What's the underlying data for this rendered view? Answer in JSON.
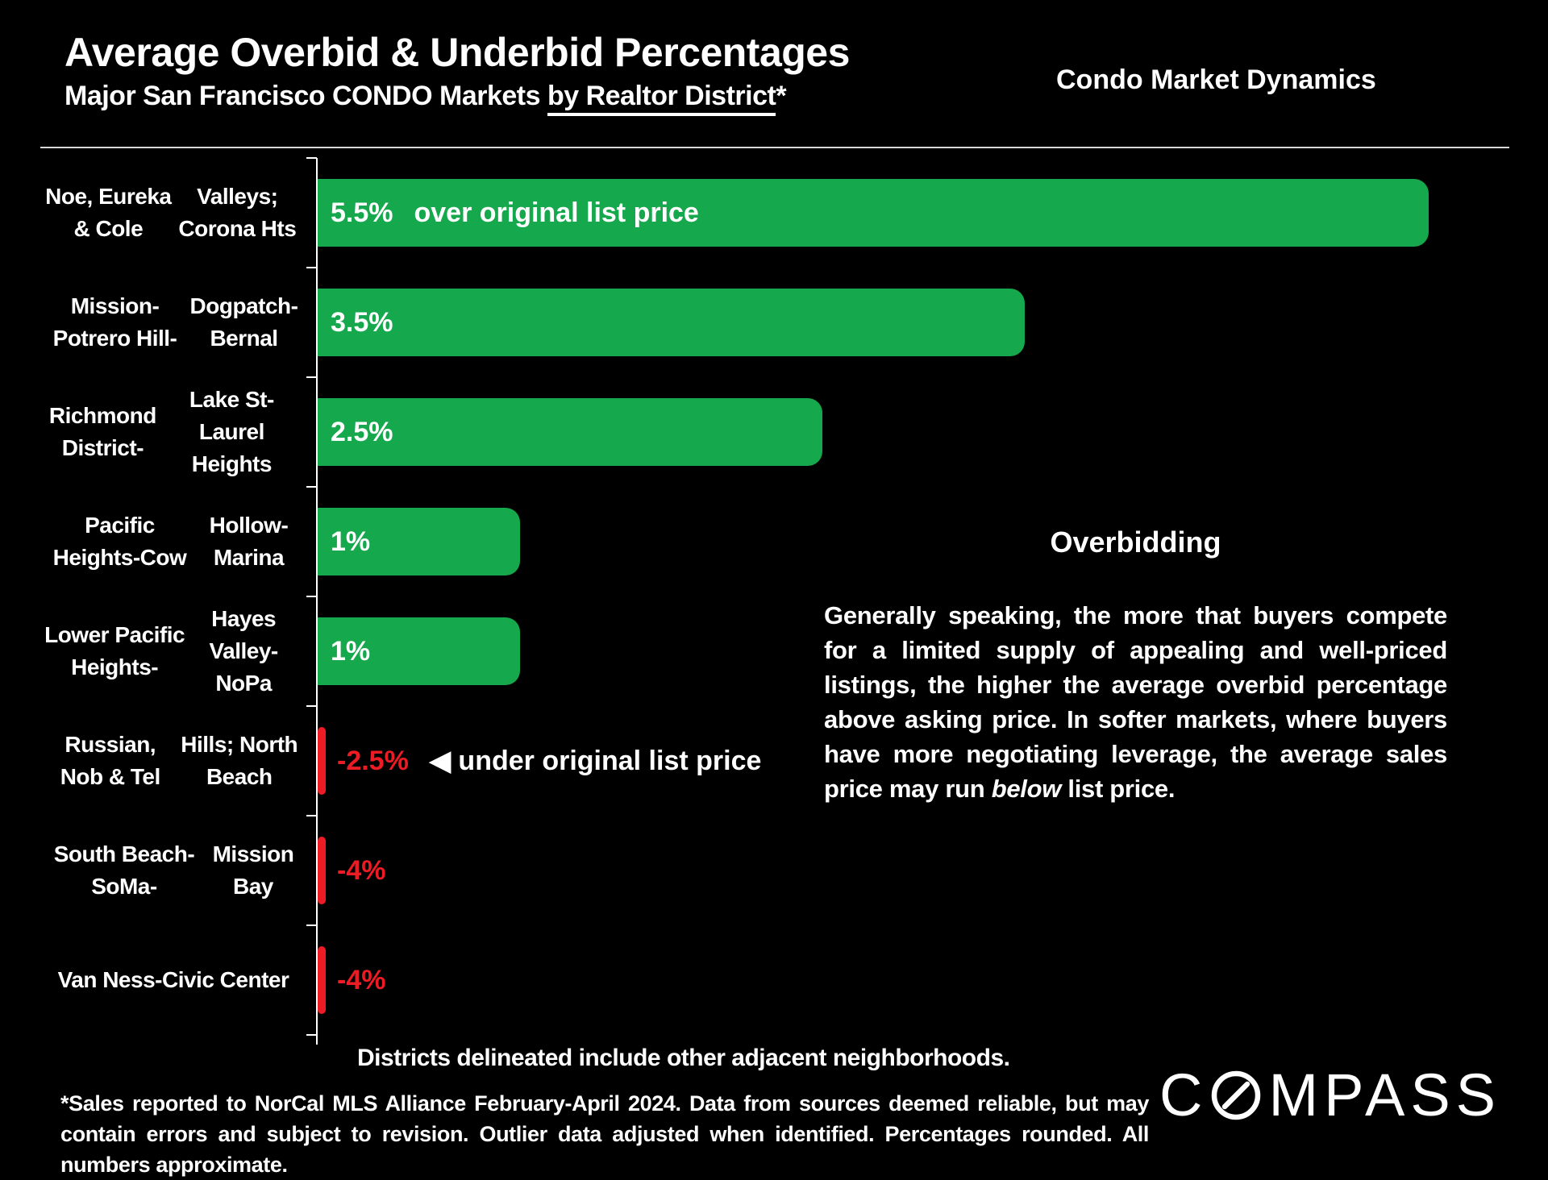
{
  "header": {
    "title": "Average Overbid & Underbid Percentages",
    "subtitle_prefix": "Major San Francisco CONDO Markets ",
    "subtitle_underlined": "by Realtor District",
    "subtitle_suffix": "*",
    "right_title": "Condo Market Dynamics"
  },
  "chart_data": {
    "type": "bar",
    "orientation": "horizontal",
    "value_unit": "percent vs original list price",
    "axis_range": [
      0,
      5.5
    ],
    "positive_color": "#16a84c",
    "negative_color": "#ed1c24",
    "categories": [
      "Noe, Eureka & Cole Valleys; Corona Hts",
      "Mission-Potrero Hill-Dogpatch-Bernal",
      "Richmond District-Lake St-Laurel Heights",
      "Pacific Heights-Cow Hollow-Marina",
      "Lower Pacific Heights-Hayes Valley-NoPa",
      "Russian, Nob & Tel Hills; North Beach",
      "South Beach-SoMa-Mission Bay",
      "Van Ness-Civic Center"
    ],
    "values": [
      5.5,
      3.5,
      2.5,
      1,
      1,
      -2.5,
      -4,
      -4
    ],
    "rows": [
      {
        "label_lines": [
          "Noe, Eureka & Cole",
          "Valleys; Corona Hts"
        ],
        "value": 5.5,
        "value_label": "5.5%",
        "annotation": "over original list price"
      },
      {
        "label_lines": [
          "Mission-Potrero Hill-",
          "Dogpatch-Bernal"
        ],
        "value": 3.5,
        "value_label": "3.5%",
        "annotation": ""
      },
      {
        "label_lines": [
          "Richmond District-",
          "Lake St-Laurel Heights"
        ],
        "value": 2.5,
        "value_label": "2.5%",
        "annotation": ""
      },
      {
        "label_lines": [
          "Pacific Heights-Cow",
          "Hollow-Marina"
        ],
        "value": 1,
        "value_label": "1%",
        "annotation": ""
      },
      {
        "label_lines": [
          "Lower Pacific Heights-",
          "Hayes Valley-NoPa"
        ],
        "value": 1,
        "value_label": "1%",
        "annotation": ""
      },
      {
        "label_lines": [
          "Russian, Nob & Tel",
          "Hills; North Beach"
        ],
        "value": -2.5,
        "value_label": "-2.5%",
        "annotation": "◀ under original list price"
      },
      {
        "label_lines": [
          "South Beach-SoMa-",
          "Mission Bay"
        ],
        "value": -4,
        "value_label": "-4%",
        "annotation": ""
      },
      {
        "label_lines": [
          "Van Ness-Civic Center"
        ],
        "value": -4,
        "value_label": "-4%",
        "annotation": ""
      }
    ]
  },
  "side_panel": {
    "heading": "Overbidding",
    "body_start": "Generally speaking, the more that buyers compete for a limited supply of appealing and well-priced listings, the higher the average overbid percentage above asking price. In softer markets, where buyers have more negotiating leverage, the average sales price may run ",
    "body_italic": "below",
    "body_end": " list price."
  },
  "footer": {
    "districts_note": "Districts delineated include other adjacent neighborhoods.",
    "footnote": "*Sales reported to NorCal MLS Alliance February-April 2024. Data from sources deemed reliable, but may contain errors and subject to revision. Outlier data adjusted when identified. Percentages rounded. All numbers  approximate.",
    "brand_prefix": "C",
    "brand_suffix": "MPASS"
  }
}
